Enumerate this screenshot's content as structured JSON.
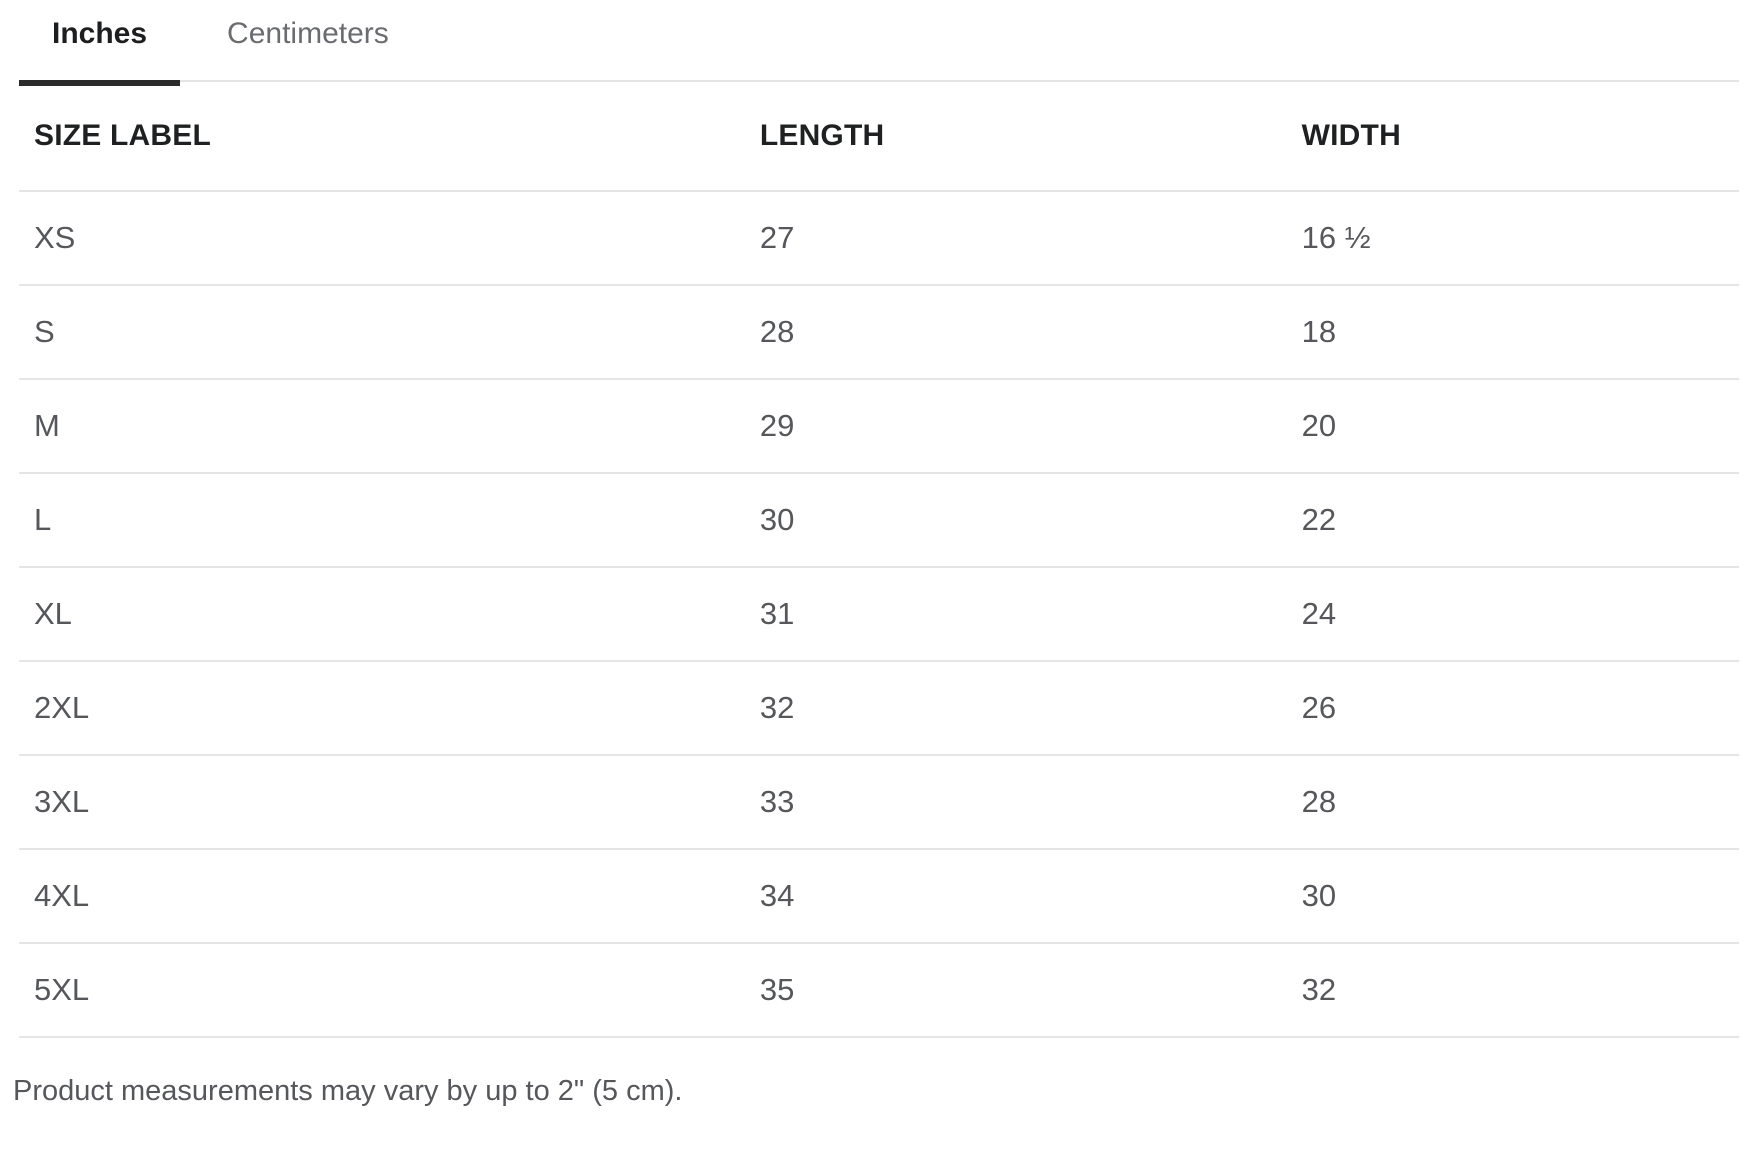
{
  "unit_tabs": {
    "items": [
      {
        "label": "Inches",
        "active": true
      },
      {
        "label": "Centimeters",
        "active": false
      }
    ]
  },
  "size_table": {
    "columns": [
      "SIZE LABEL",
      "LENGTH",
      "WIDTH"
    ],
    "rows": [
      {
        "size": "XS",
        "length": "27",
        "width": "16 ½"
      },
      {
        "size": "S",
        "length": "28",
        "width": "18"
      },
      {
        "size": "M",
        "length": "29",
        "width": "20"
      },
      {
        "size": "L",
        "length": "30",
        "width": "22"
      },
      {
        "size": "XL",
        "length": "31",
        "width": "24"
      },
      {
        "size": "2XL",
        "length": "32",
        "width": "26"
      },
      {
        "size": "3XL",
        "length": "33",
        "width": "28"
      },
      {
        "size": "4XL",
        "length": "34",
        "width": "30"
      },
      {
        "size": "5XL",
        "length": "35",
        "width": "32"
      }
    ]
  },
  "footnote": "Product measurements may vary by up to 2\" (5 cm).",
  "colors": {
    "text_dark": "#1d1e20",
    "text_gray": "#55575a",
    "tab_inactive_gray": "#6a6c6f",
    "divider": "#e5e5e6",
    "active_tab_indicator": "#2b2b2c",
    "background": "#ffffff"
  }
}
